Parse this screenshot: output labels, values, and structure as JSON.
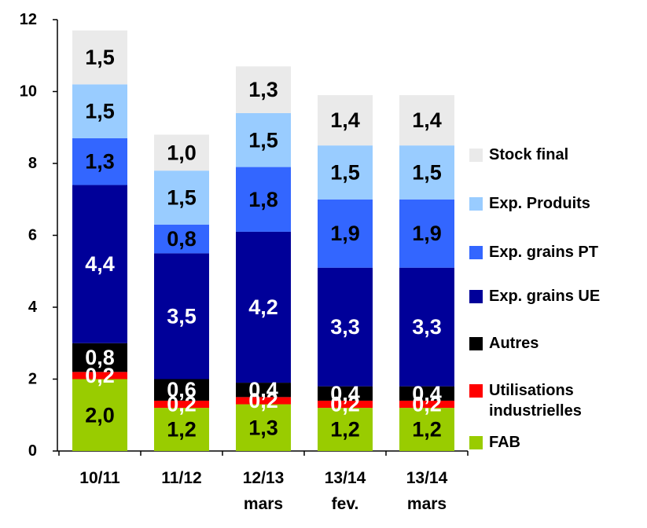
{
  "chart_data": {
    "type": "stacked_bar",
    "categories": [
      "10/11",
      "11/12",
      "12/13 mars",
      "13/14 fev.",
      "13/14 mars"
    ],
    "series": [
      {
        "name": "FAB",
        "color": "#99cc00",
        "values": [
          2.0,
          1.2,
          1.3,
          1.2,
          1.2
        ],
        "value_labels": [
          "2,0",
          "1,2",
          "1,3",
          "1,2",
          "1,2"
        ]
      },
      {
        "name": "Utilisations industrielles",
        "color": "#ff0000",
        "values": [
          0.2,
          0.2,
          0.2,
          0.2,
          0.2
        ],
        "value_labels": [
          "0,2",
          "0,2",
          "0,2",
          "0,2",
          "0,2"
        ]
      },
      {
        "name": "Autres",
        "color": "#000000",
        "values": [
          0.8,
          0.6,
          0.4,
          0.4,
          0.4
        ],
        "value_labels": [
          "0,8",
          "0,6",
          "0,4",
          "0,4",
          "0,4"
        ]
      },
      {
        "name": "Exp. grains UE",
        "color": "#000099",
        "values": [
          4.4,
          3.5,
          4.2,
          3.3,
          3.3
        ],
        "value_labels": [
          "4,4",
          "3,5",
          "4,2",
          "3,3",
          "3,3"
        ]
      },
      {
        "name": "Exp. grains PT",
        "color": "#3366ff",
        "values": [
          1.3,
          0.8,
          1.8,
          1.9,
          1.9
        ],
        "value_labels": [
          "1,3",
          "0,8",
          "1,8",
          "1,9",
          "1,9"
        ]
      },
      {
        "name": "Exp. Produits",
        "color": "#99ccff",
        "values": [
          1.5,
          1.5,
          1.5,
          1.5,
          1.5
        ],
        "value_labels": [
          "1,5",
          "1,5",
          "1,5",
          "1,5",
          "1,5"
        ]
      },
      {
        "name": "Stock final",
        "color": "#eaeaea",
        "values": [
          1.5,
          1.0,
          1.3,
          1.4,
          1.4
        ],
        "value_labels": [
          "1,5",
          "1,0",
          "1,3",
          "1,4",
          "1,4"
        ]
      }
    ],
    "ylim": [
      0,
      12
    ],
    "yticks": [
      0,
      2,
      4,
      6,
      8,
      10,
      12
    ],
    "legend": "right"
  }
}
